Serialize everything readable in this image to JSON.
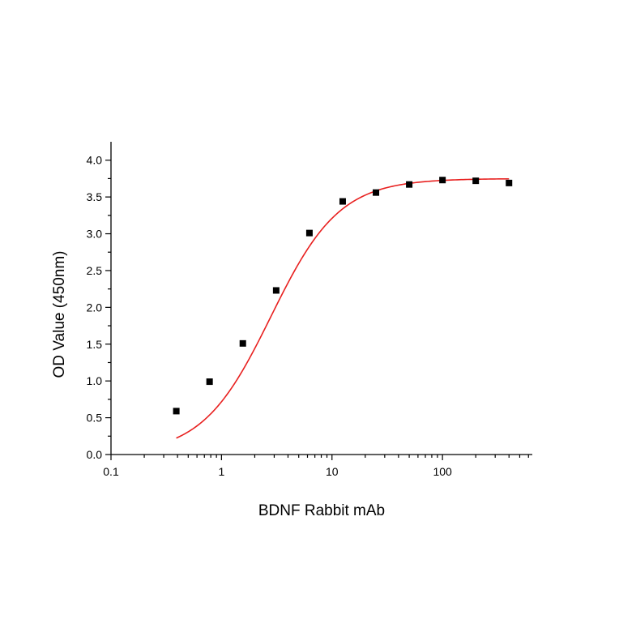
{
  "chart_data": {
    "type": "scatter",
    "title": "",
    "xlabel": "BDNF Rabbit mAb",
    "ylabel": "OD Value (450nm)",
    "x_scale": "log",
    "xlim": [
      0.1,
      650
    ],
    "ylim": [
      0.0,
      4.25
    ],
    "x_ticks": [
      0.1,
      1,
      10,
      100
    ],
    "x_tick_labels": [
      "0.1",
      "1",
      "10",
      "100"
    ],
    "y_ticks": [
      0.0,
      0.5,
      1.0,
      1.5,
      2.0,
      2.5,
      3.0,
      3.5,
      4.0
    ],
    "y_tick_labels": [
      "0.0",
      "0.5",
      "1.0",
      "1.5",
      "2.0",
      "2.5",
      "3.0",
      "3.5",
      "4.0"
    ],
    "grid": false,
    "legend": "none",
    "series": [
      {
        "marker": "square",
        "color": "#000000",
        "x": [
          0.39,
          0.78,
          1.56,
          3.125,
          6.25,
          12.5,
          25,
          50,
          100,
          200,
          400
        ],
        "y": [
          0.59,
          0.99,
          1.51,
          2.23,
          3.01,
          3.44,
          3.56,
          3.67,
          3.73,
          3.72,
          3.69
        ]
      }
    ],
    "fit_curve": {
      "color": "#e8201f",
      "model": "4PL",
      "x_range": [
        0.39,
        400
      ],
      "bottom": 0.0,
      "top": 3.75,
      "ec50": 2.8,
      "hill": 1.4
    }
  }
}
